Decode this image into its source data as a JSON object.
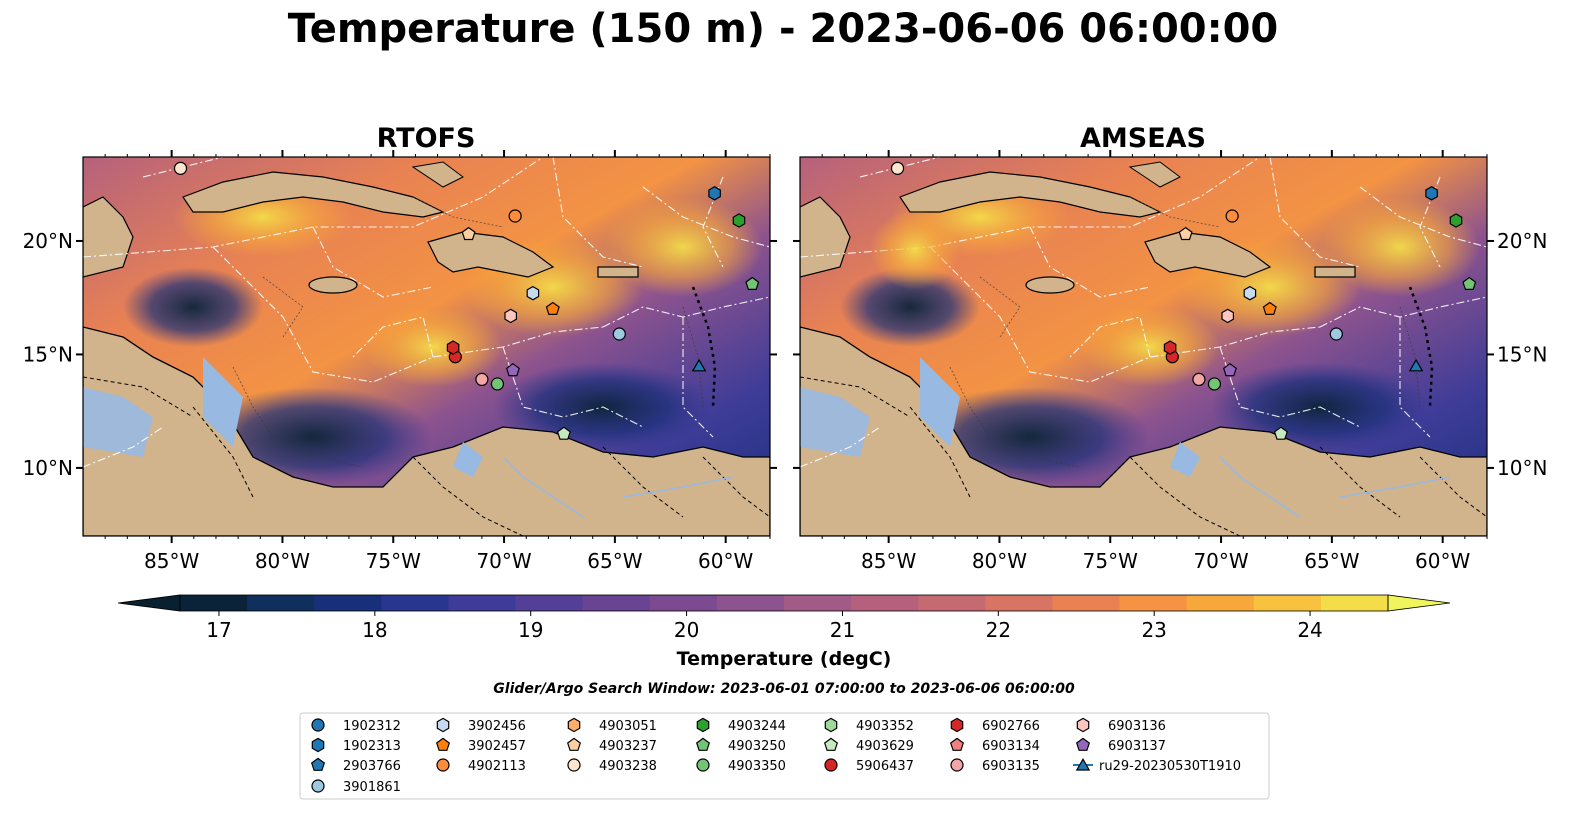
{
  "title": "Temperature (150 m) - 2023-06-06 06:00:00",
  "panels": [
    {
      "name": "RTOFS"
    },
    {
      "name": "AMSEAS"
    }
  ],
  "axes": {
    "lon_range": [
      -89,
      -58
    ],
    "lat_range": [
      7,
      23.7
    ],
    "lon_ticks": [
      {
        "value": -85,
        "label": "85°W"
      },
      {
        "value": -80,
        "label": "80°W"
      },
      {
        "value": -75,
        "label": "75°W"
      },
      {
        "value": -70,
        "label": "70°W"
      },
      {
        "value": -65,
        "label": "65°W"
      },
      {
        "value": -60,
        "label": "60°W"
      }
    ],
    "lat_ticks": [
      {
        "value": 20,
        "label": "20°N"
      },
      {
        "value": 15,
        "label": "15°N"
      },
      {
        "value": 10,
        "label": "10°N"
      }
    ]
  },
  "colorbar": {
    "label": "Temperature (degC)",
    "min": 16.75,
    "max": 24.5,
    "ticks": [
      {
        "value": 17,
        "label": "17"
      },
      {
        "value": 18,
        "label": "18"
      },
      {
        "value": 19,
        "label": "19"
      },
      {
        "value": 20,
        "label": "20"
      },
      {
        "value": 21,
        "label": "21"
      },
      {
        "value": 22,
        "label": "22"
      },
      {
        "value": 23,
        "label": "23"
      },
      {
        "value": 24,
        "label": "24"
      }
    ],
    "colors": [
      "#0b2338",
      "#0f2f5c",
      "#182f7a",
      "#2a3590",
      "#3e3c98",
      "#543f97",
      "#684493",
      "#7b4a90",
      "#8d538e",
      "#a25b87",
      "#b5617d",
      "#c66a72",
      "#d87464",
      "#e88253",
      "#f39343",
      "#f7a83b",
      "#f8c140",
      "#f3dd49"
    ],
    "under_color": "#08202f",
    "over_color": "#eff55a"
  },
  "search_window": "Glider/Argo Search Window: 2023-06-01 07:00:00 to 2023-06-06 06:00:00",
  "colors": {
    "land": "#d2b48c",
    "ocean": "#98b9e1",
    "contour": "#3a3a3a",
    "eez": "#ffffff"
  },
  "platforms": [
    {
      "id": "1902312",
      "marker": "circle",
      "color": "#1f77b4",
      "lon": null,
      "lat": null
    },
    {
      "id": "1902313",
      "marker": "hexagon",
      "color": "#1f77b4",
      "lon": -60.5,
      "lat": 22.1
    },
    {
      "id": "2903766",
      "marker": "pentagon",
      "color": "#1f77b4",
      "lon": null,
      "lat": null
    },
    {
      "id": "3901861",
      "marker": "circle",
      "color": "#9ecae1",
      "lon": -64.8,
      "lat": 15.9
    },
    {
      "id": "3902456",
      "marker": "hexagon",
      "color": "#c6dbef",
      "lon": -68.7,
      "lat": 17.7
    },
    {
      "id": "3902457",
      "marker": "pentagon",
      "color": "#ff7f0e",
      "lon": -67.8,
      "lat": 17.0
    },
    {
      "id": "4902113",
      "marker": "circle",
      "color": "#fd8d3c",
      "lon": -69.5,
      "lat": 21.1
    },
    {
      "id": "4903051",
      "marker": "hexagon",
      "color": "#fdae6b",
      "lon": null,
      "lat": null
    },
    {
      "id": "4903237",
      "marker": "pentagon",
      "color": "#fdd0a2",
      "lon": -71.6,
      "lat": 20.3
    },
    {
      "id": "4903238",
      "marker": "circle",
      "color": "#fee6ce",
      "lon": -84.6,
      "lat": 23.2
    },
    {
      "id": "4903244",
      "marker": "hexagon",
      "color": "#2ca02c",
      "lon": -59.4,
      "lat": 20.9
    },
    {
      "id": "4903250",
      "marker": "pentagon",
      "color": "#74c476",
      "lon": -58.8,
      "lat": 18.1
    },
    {
      "id": "4903350",
      "marker": "circle",
      "color": "#74c476",
      "lon": -70.3,
      "lat": 13.7
    },
    {
      "id": "4903352",
      "marker": "hexagon",
      "color": "#a1d99b",
      "lon": null,
      "lat": null
    },
    {
      "id": "4903629",
      "marker": "pentagon",
      "color": "#c7e9c0",
      "lon": -67.3,
      "lat": 11.5
    },
    {
      "id": "5906437",
      "marker": "circle",
      "color": "#d62728",
      "lon": -72.2,
      "lat": 14.9
    },
    {
      "id": "6902766",
      "marker": "hexagon",
      "color": "#d62728",
      "lon": -72.3,
      "lat": 15.3
    },
    {
      "id": "6903134",
      "marker": "pentagon",
      "color": "#f08080",
      "lon": null,
      "lat": null
    },
    {
      "id": "6903135",
      "marker": "circle",
      "color": "#f4a6a6",
      "lon": -71.0,
      "lat": 13.9
    },
    {
      "id": "6903136",
      "marker": "hexagon",
      "color": "#fcc5c0",
      "lon": -69.7,
      "lat": 16.7
    },
    {
      "id": "6903137",
      "marker": "pentagon",
      "color": "#9467bd",
      "lon": -69.6,
      "lat": 14.3
    },
    {
      "id": "ru29-20230530T1910",
      "marker": "triangle",
      "color": "#1f77b4",
      "lon": -61.2,
      "lat": 14.5
    }
  ]
}
